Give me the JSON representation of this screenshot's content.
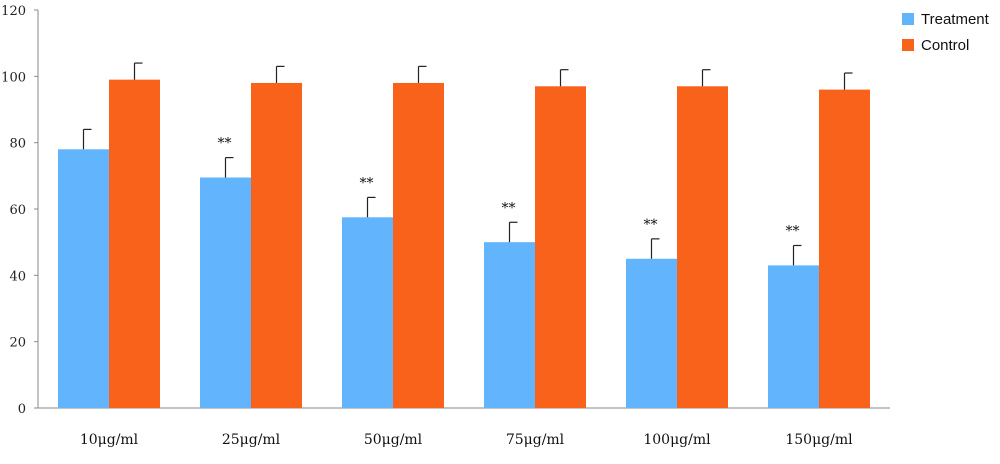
{
  "chart_data": {
    "type": "bar",
    "title": "",
    "xlabel": "",
    "ylabel": "",
    "ylim": [
      0,
      120
    ],
    "yticks": [
      0,
      20,
      40,
      60,
      80,
      100,
      120
    ],
    "grid": false,
    "legend_position": "top-right",
    "categories": [
      "10μg/ml",
      "25μg/ml",
      "50μg/ml",
      "75μg/ml",
      "100μg/ml",
      "150μg/ml"
    ],
    "series": [
      {
        "name": "Treatment",
        "color": "#62b5fd",
        "values": [
          78,
          69.5,
          57.5,
          50,
          45,
          43
        ],
        "errors": [
          6,
          6,
          6,
          6,
          6,
          6
        ],
        "annotations": [
          "",
          "**",
          "**",
          "**",
          "**",
          "**"
        ]
      },
      {
        "name": "Control",
        "color": "#f8621a",
        "values": [
          99,
          98,
          98,
          97,
          97,
          96
        ],
        "errors": [
          5,
          5,
          5,
          5,
          5,
          5
        ],
        "annotations": [
          "",
          "",
          "",
          "",
          "",
          ""
        ]
      }
    ]
  }
}
